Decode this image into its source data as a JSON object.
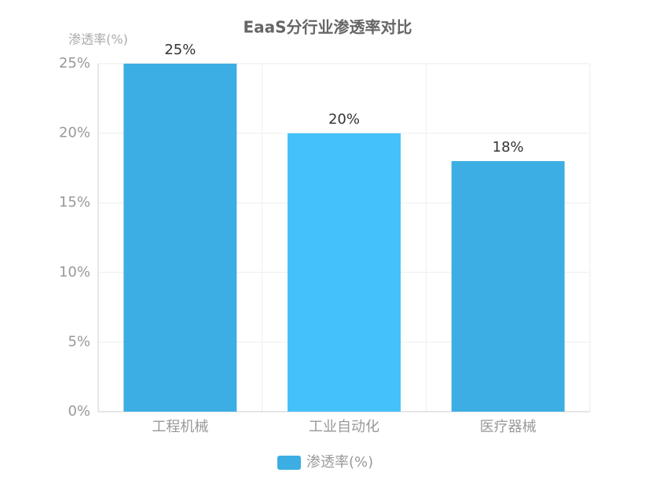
{
  "chart_data": {
    "type": "bar",
    "title": "EaaS分行业渗透率对比",
    "y_label": "渗透率(%)",
    "categories": [
      "工程机械",
      "工业自动化",
      "医疗器械"
    ],
    "series": [
      {
        "name": "渗透率(%)",
        "color": "#3daee3",
        "colors": [
          "#3daee3",
          "#45c1f9",
          "#3daee3"
        ],
        "values": [
          25,
          20,
          18
        ],
        "value_labels": [
          "25%",
          "20%",
          "18%"
        ]
      }
    ],
    "ylim": [
      0,
      25
    ],
    "yticks": [
      {
        "value": 0,
        "label": "0%"
      },
      {
        "value": 5,
        "label": "5%"
      },
      {
        "value": 10,
        "label": "10%"
      },
      {
        "value": 15,
        "label": "15%"
      },
      {
        "value": 20,
        "label": "20%"
      },
      {
        "value": 25,
        "label": "25%"
      }
    ],
    "grid": true,
    "legend": "bottom"
  }
}
